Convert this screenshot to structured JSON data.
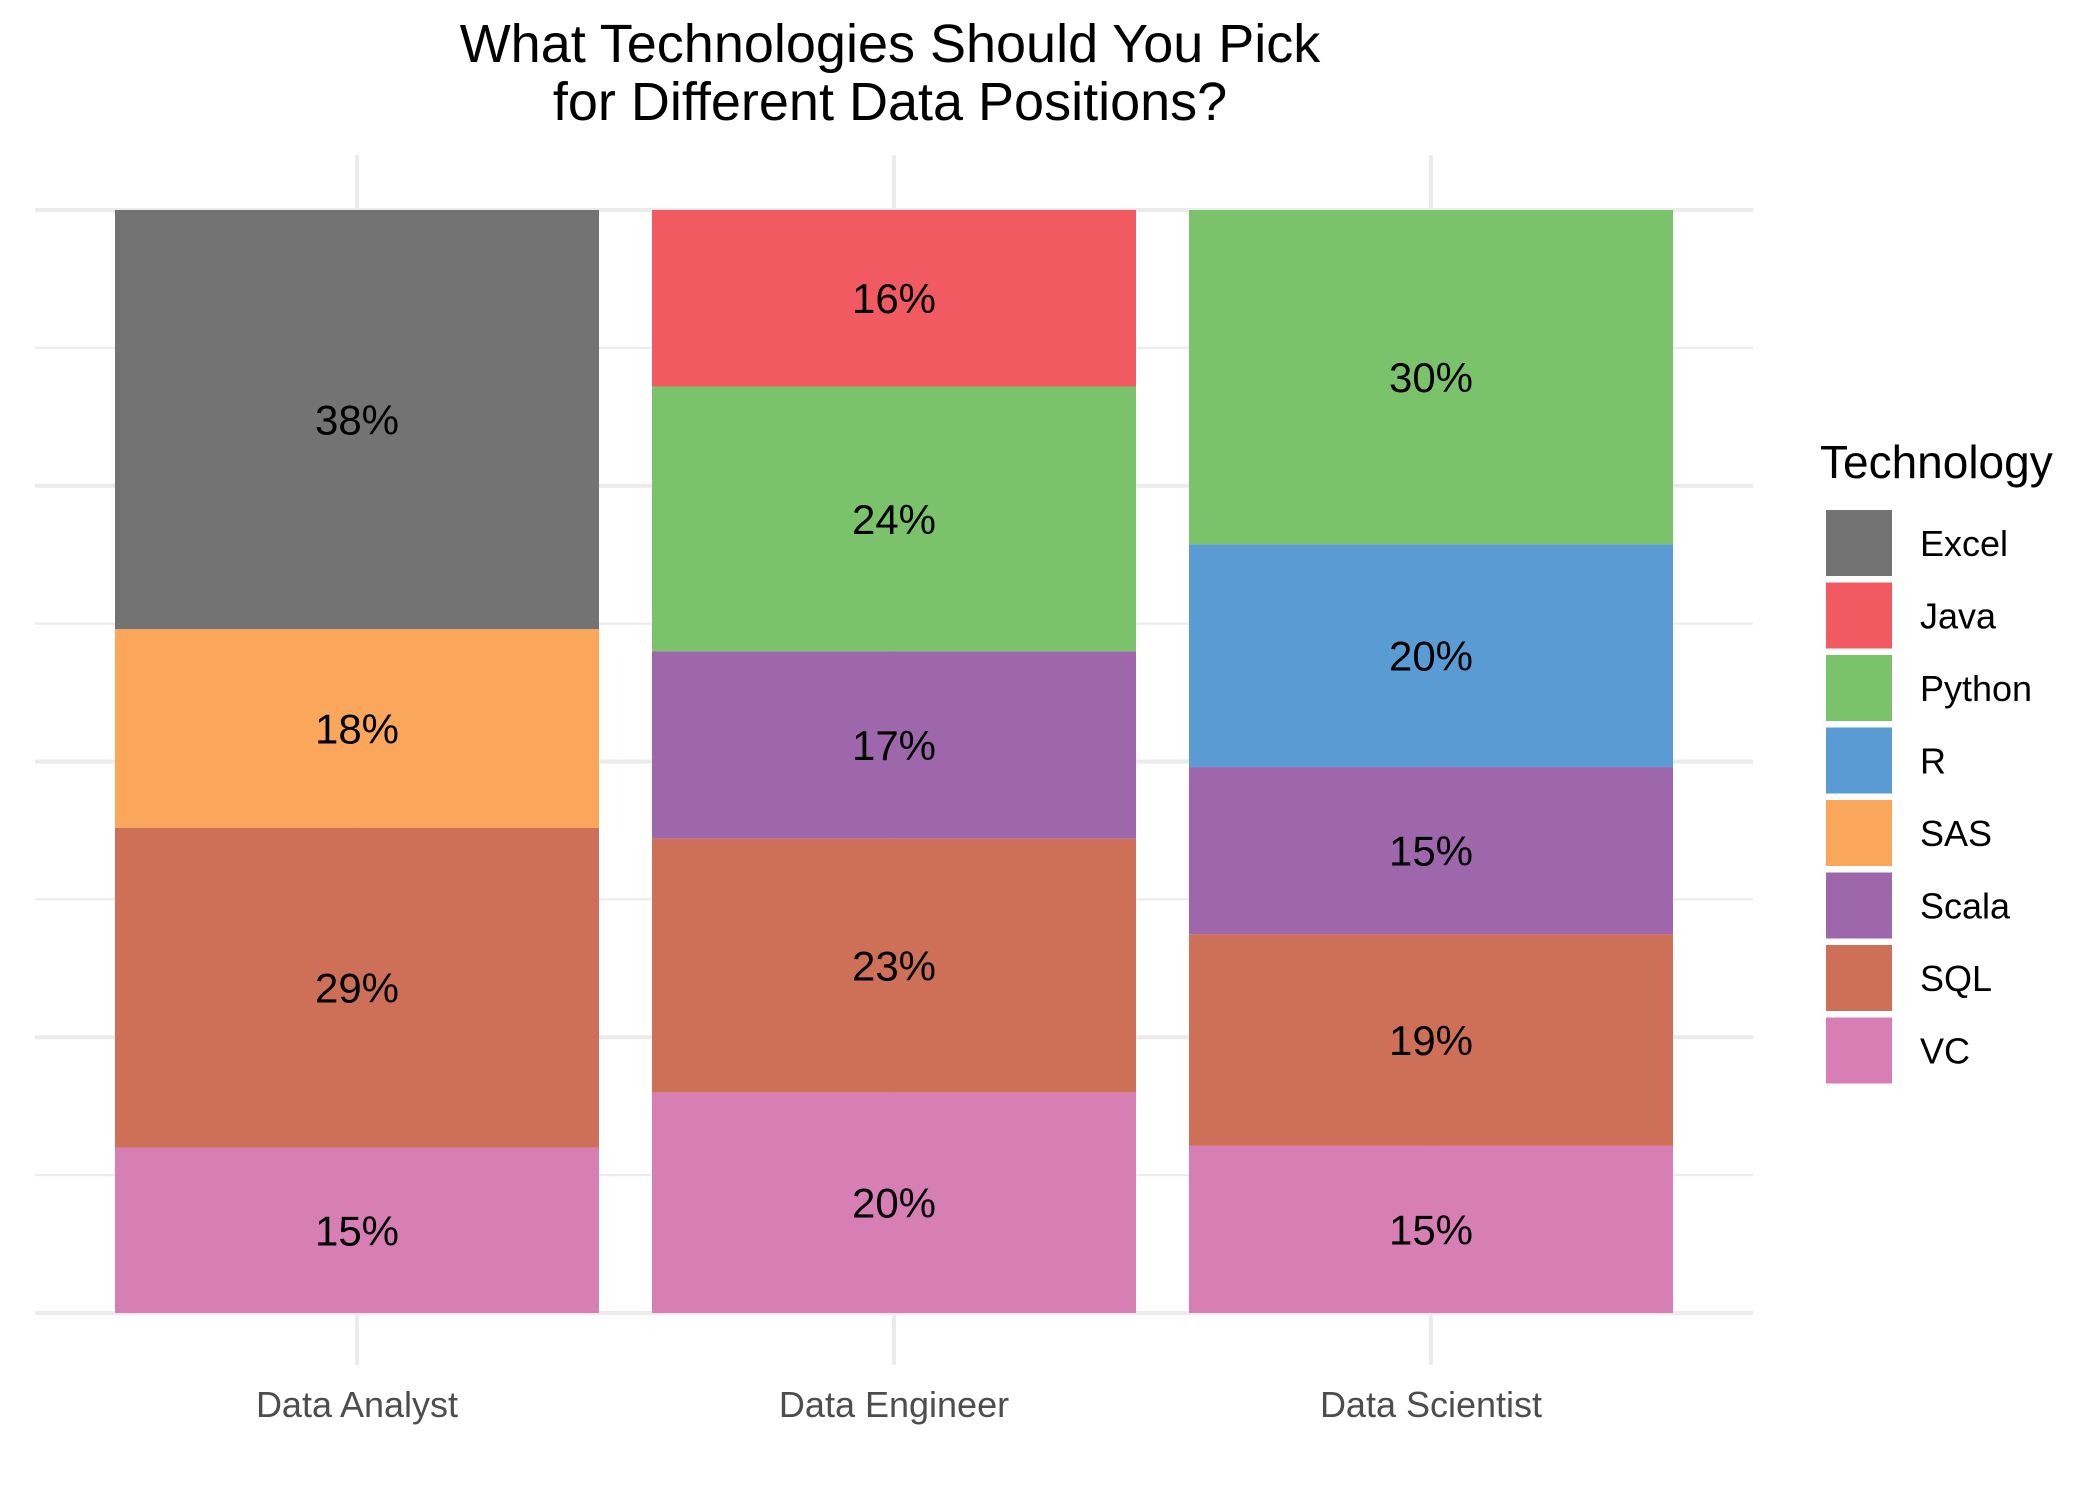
{
  "chart_data": {
    "type": "bar",
    "stacked": true,
    "normalized": true,
    "title": [
      "What Technologies Should You Pick",
      "for Different Data Positions?"
    ],
    "xlabel": "",
    "ylabel": "",
    "ylim": [
      0,
      1
    ],
    "grid": true,
    "legend": {
      "title": "Technology",
      "placement": "right",
      "entries": [
        {
          "name": "Excel",
          "color": "#737373"
        },
        {
          "name": "Java",
          "color": "#f15a60"
        },
        {
          "name": "Python",
          "color": "#7ac36a"
        },
        {
          "name": "R",
          "color": "#5a9bd4"
        },
        {
          "name": "SAS",
          "color": "#faa75b"
        },
        {
          "name": "Scala",
          "color": "#9e67ab"
        },
        {
          "name": "SQL",
          "color": "#ce7058"
        },
        {
          "name": "VC",
          "color": "#d77fb4"
        }
      ]
    },
    "categories": [
      "Data Analyst",
      "Data Engineer",
      "Data Scientist"
    ],
    "stack_order_bottom_to_top": [
      "VC",
      "SQL",
      "Scala",
      "SAS",
      "R",
      "Python",
      "Java",
      "Excel"
    ],
    "series": [
      {
        "name": "Excel",
        "values": [
          0.38,
          0,
          0
        ]
      },
      {
        "name": "Java",
        "values": [
          0,
          0.16,
          0
        ]
      },
      {
        "name": "Python",
        "values": [
          0,
          0.24,
          0.3
        ]
      },
      {
        "name": "R",
        "values": [
          0,
          0,
          0.2
        ]
      },
      {
        "name": "SAS",
        "values": [
          0.18,
          0,
          0
        ]
      },
      {
        "name": "Scala",
        "values": [
          0,
          0.17,
          0.15
        ]
      },
      {
        "name": "SQL",
        "values": [
          0.29,
          0.23,
          0.19
        ]
      },
      {
        "name": "VC",
        "values": [
          0.15,
          0.2,
          0.15
        ]
      }
    ],
    "data_labels": [
      {
        "category": "Data Analyst",
        "series": "Excel",
        "text": "38%"
      },
      {
        "category": "Data Analyst",
        "series": "SAS",
        "text": "18%"
      },
      {
        "category": "Data Analyst",
        "series": "SQL",
        "text": "29%"
      },
      {
        "category": "Data Analyst",
        "series": "VC",
        "text": "15%"
      },
      {
        "category": "Data Engineer",
        "series": "Java",
        "text": "16%"
      },
      {
        "category": "Data Engineer",
        "series": "Python",
        "text": "24%"
      },
      {
        "category": "Data Engineer",
        "series": "Scala",
        "text": "17%"
      },
      {
        "category": "Data Engineer",
        "series": "SQL",
        "text": "23%"
      },
      {
        "category": "Data Engineer",
        "series": "VC",
        "text": "20%"
      },
      {
        "category": "Data Scientist",
        "series": "Python",
        "text": "30%"
      },
      {
        "category": "Data Scientist",
        "series": "R",
        "text": "20%"
      },
      {
        "category": "Data Scientist",
        "series": "Scala",
        "text": "15%"
      },
      {
        "category": "Data Scientist",
        "series": "SQL",
        "text": "19%"
      },
      {
        "category": "Data Scientist",
        "series": "VC",
        "text": "15%"
      }
    ]
  }
}
